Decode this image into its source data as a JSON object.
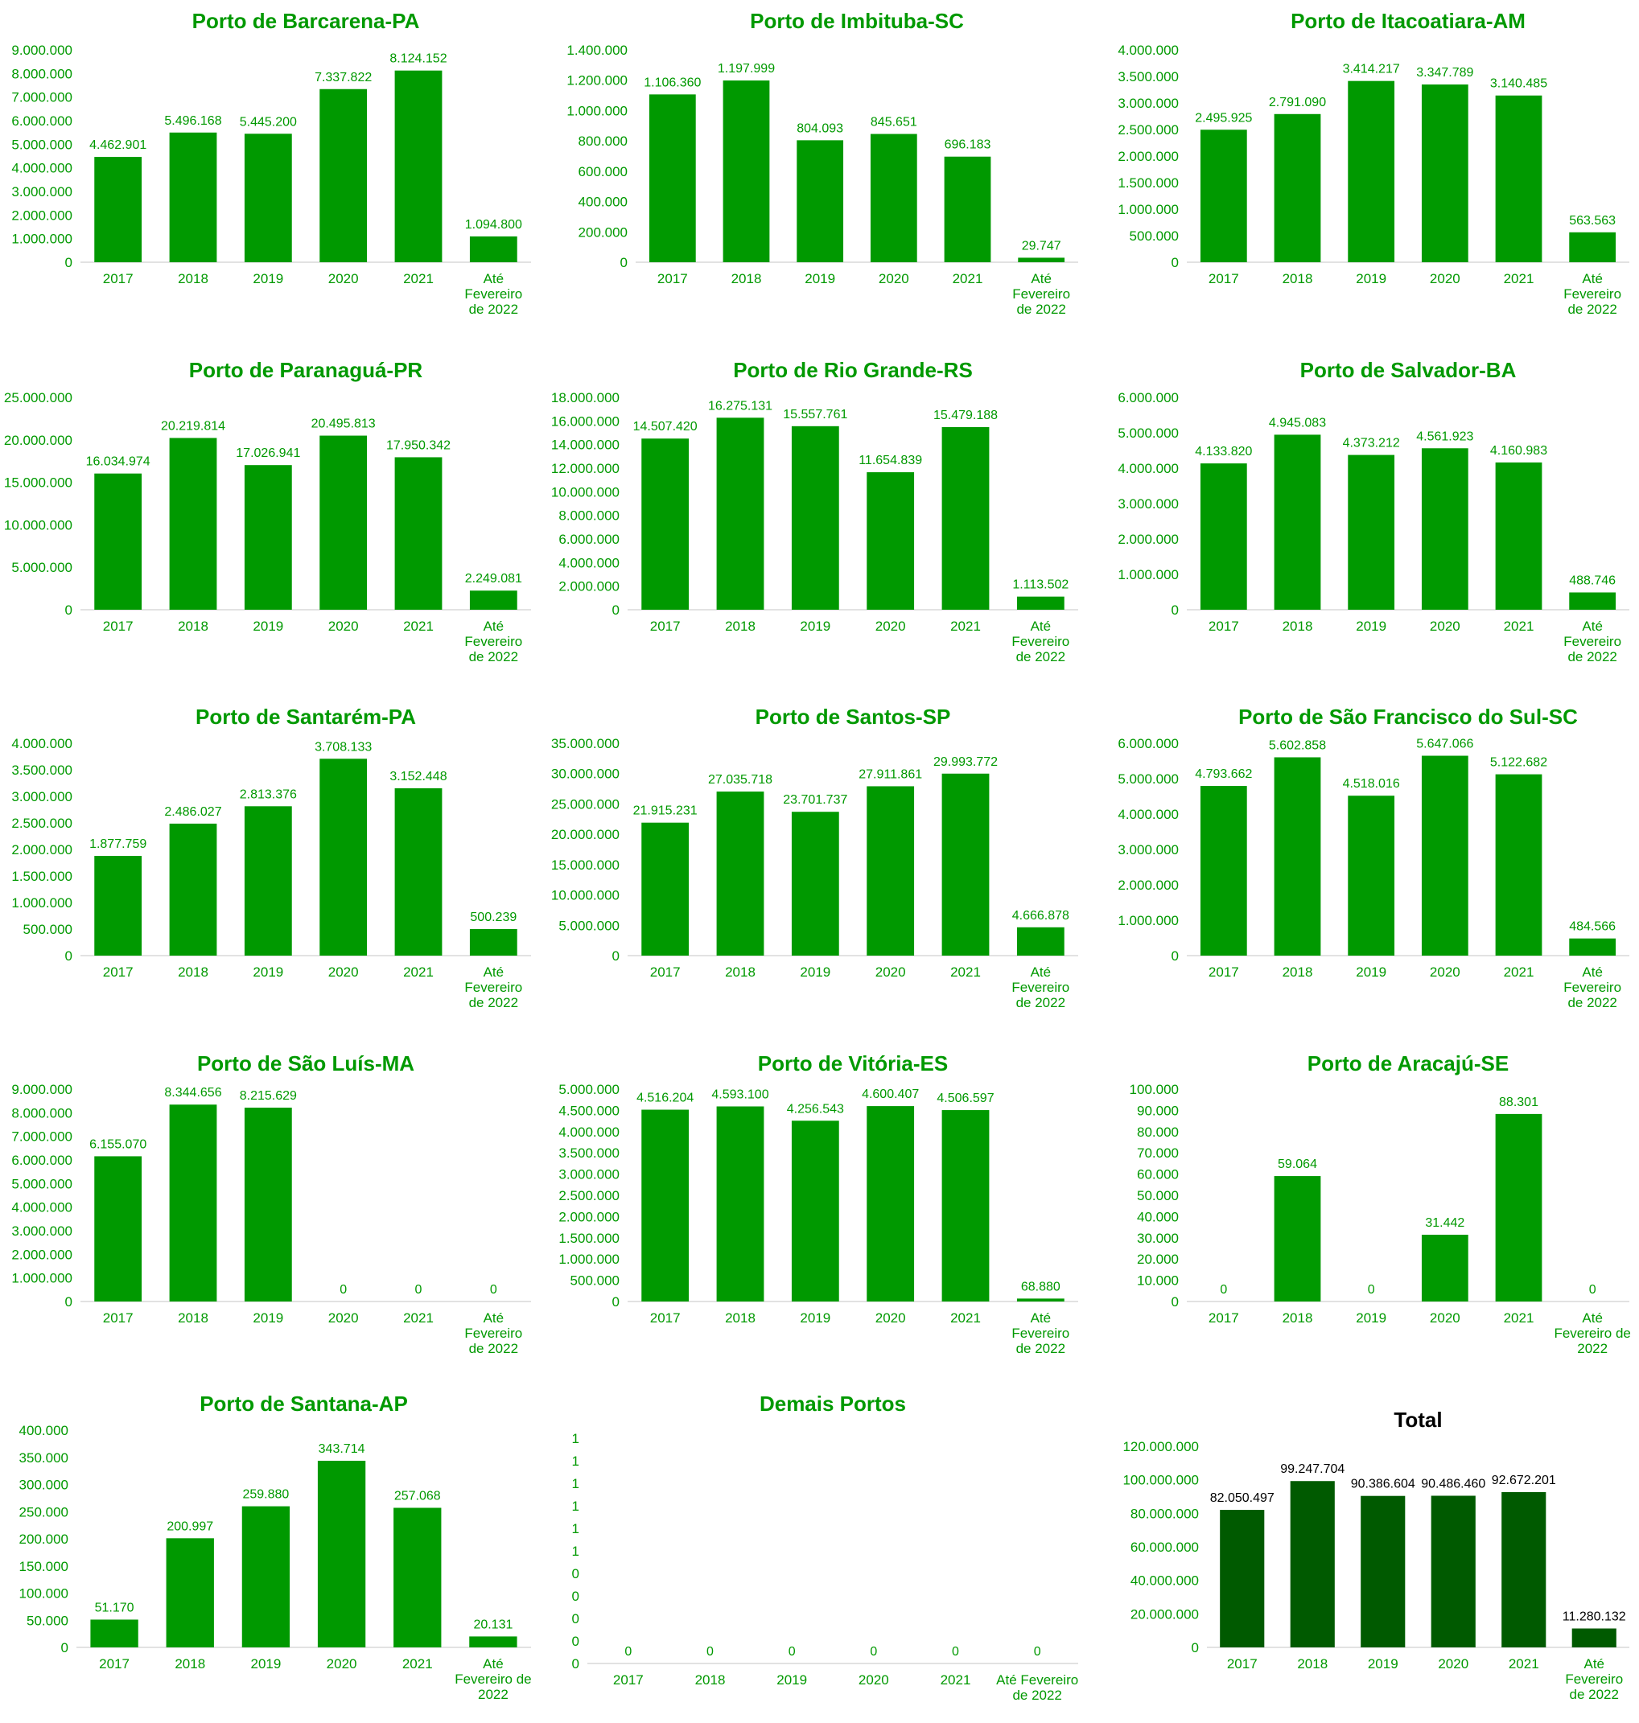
{
  "chart_data": [
    {
      "type": "bar",
      "title": "Porto de Barcarena-PA",
      "categories": [
        "2017",
        "2018",
        "2019",
        "2020",
        "2021",
        "Até|Fevereiro|de 2022"
      ],
      "values": [
        4462901,
        5496168,
        5445200,
        7337822,
        8124152,
        1094800
      ],
      "value_labels": [
        "4.462.901",
        "5.496.168",
        "5.445.200",
        "7.337.822",
        "8.124.152",
        "1.094.800"
      ],
      "ylim": [
        0,
        9000000
      ],
      "yticks": [
        "0",
        "1.000.000",
        "2.000.000",
        "3.000.000",
        "4.000.000",
        "5.000.000",
        "6.000.000",
        "7.000.000",
        "8.000.000",
        "9.000.000"
      ],
      "color": "#009900"
    },
    {
      "type": "bar",
      "title": "Porto de Imbituba-SC",
      "categories": [
        "2017",
        "2018",
        "2019",
        "2020",
        "2021",
        "Até|Fevereiro|de 2022"
      ],
      "values": [
        1106360,
        1197999,
        804093,
        845651,
        696183,
        29747
      ],
      "value_labels": [
        "1.106.360",
        "1.197.999",
        "804.093",
        "845.651",
        "696.183",
        "29.747"
      ],
      "ylim": [
        0,
        1400000
      ],
      "yticks": [
        "0",
        "200.000",
        "400.000",
        "600.000",
        "800.000",
        "1.000.000",
        "1.200.000",
        "1.400.000"
      ],
      "color": "#009900"
    },
    {
      "type": "bar",
      "title": "Porto de Itacoatiara-AM",
      "categories": [
        "2017",
        "2018",
        "2019",
        "2020",
        "2021",
        "Até|Fevereiro|de 2022"
      ],
      "values": [
        2495925,
        2791090,
        3414217,
        3347789,
        3140485,
        563563
      ],
      "value_labels": [
        "2.495.925",
        "2.791.090",
        "3.414.217",
        "3.347.789",
        "3.140.485",
        "563.563"
      ],
      "ylim": [
        0,
        4000000
      ],
      "yticks": [
        "0",
        "500.000",
        "1.000.000",
        "1.500.000",
        "2.000.000",
        "2.500.000",
        "3.000.000",
        "3.500.000",
        "4.000.000"
      ],
      "color": "#009900"
    },
    {
      "type": "bar",
      "title": "Porto de Paranaguá-PR",
      "categories": [
        "2017",
        "2018",
        "2019",
        "2020",
        "2021",
        "Até|Fevereiro|de 2022"
      ],
      "values": [
        16034974,
        20219814,
        17026941,
        20495813,
        17950342,
        2249081
      ],
      "value_labels": [
        "16.034.974",
        "20.219.814",
        "17.026.941",
        "20.495.813",
        "17.950.342",
        "2.249.081"
      ],
      "ylim": [
        0,
        25000000
      ],
      "yticks": [
        "0",
        "5.000.000",
        "10.000.000",
        "15.000.000",
        "20.000.000",
        "25.000.000"
      ],
      "color": "#009900"
    },
    {
      "type": "bar",
      "title": "Porto de Rio Grande-RS",
      "categories": [
        "2017",
        "2018",
        "2019",
        "2020",
        "2021",
        "Até|Fevereiro|de 2022"
      ],
      "values": [
        14507420,
        16275131,
        15557761,
        11654839,
        15479188,
        1113502
      ],
      "value_labels": [
        "14.507.420",
        "16.275.131",
        "15.557.761",
        "11.654.839",
        "15.479.188",
        "1.113.502"
      ],
      "ylim": [
        0,
        18000000
      ],
      "yticks": [
        "0",
        "2.000.000",
        "4.000.000",
        "6.000.000",
        "8.000.000",
        "10.000.000",
        "12.000.000",
        "14.000.000",
        "16.000.000",
        "18.000.000"
      ],
      "color": "#009900"
    },
    {
      "type": "bar",
      "title": "Porto de Salvador-BA",
      "categories": [
        "2017",
        "2018",
        "2019",
        "2020",
        "2021",
        "Até|Fevereiro|de 2022"
      ],
      "values": [
        4133820,
        4945083,
        4373212,
        4561923,
        4160983,
        488746
      ],
      "value_labels": [
        "4.133.820",
        "4.945.083",
        "4.373.212",
        "4.561.923",
        "4.160.983",
        "488.746"
      ],
      "ylim": [
        0,
        6000000
      ],
      "yticks": [
        "0",
        "1.000.000",
        "2.000.000",
        "3.000.000",
        "4.000.000",
        "5.000.000",
        "6.000.000"
      ],
      "color": "#009900"
    },
    {
      "type": "bar",
      "title": "Porto de Santarém-PA",
      "categories": [
        "2017",
        "2018",
        "2019",
        "2020",
        "2021",
        "Até|Fevereiro|de 2022"
      ],
      "values": [
        1877759,
        2486027,
        2813376,
        3708133,
        3152448,
        500239
      ],
      "value_labels": [
        "1.877.759",
        "2.486.027",
        "2.813.376",
        "3.708.133",
        "3.152.448",
        "500.239"
      ],
      "ylim": [
        0,
        4000000
      ],
      "yticks": [
        "0",
        "500.000",
        "1.000.000",
        "1.500.000",
        "2.000.000",
        "2.500.000",
        "3.000.000",
        "3.500.000",
        "4.000.000"
      ],
      "color": "#009900"
    },
    {
      "type": "bar",
      "title": "Porto de Santos-SP",
      "categories": [
        "2017",
        "2018",
        "2019",
        "2020",
        "2021",
        "Até|Fevereiro|de 2022"
      ],
      "values": [
        21915231,
        27035718,
        23701737,
        27911861,
        29993772,
        4666878
      ],
      "value_labels": [
        "21.915.231",
        "27.035.718",
        "23.701.737",
        "27.911.861",
        "29.993.772",
        "4.666.878"
      ],
      "ylim": [
        0,
        35000000
      ],
      "yticks": [
        "0",
        "5.000.000",
        "10.000.000",
        "15.000.000",
        "20.000.000",
        "25.000.000",
        "30.000.000",
        "35.000.000"
      ],
      "color": "#009900"
    },
    {
      "type": "bar",
      "title": "Porto de São Francisco do Sul-SC",
      "categories": [
        "2017",
        "2018",
        "2019",
        "2020",
        "2021",
        "Até|Fevereiro|de 2022"
      ],
      "values": [
        4793662,
        5602858,
        4518016,
        5647066,
        5122682,
        484566
      ],
      "value_labels": [
        "4.793.662",
        "5.602.858",
        "4.518.016",
        "5.647.066",
        "5.122.682",
        "484.566"
      ],
      "ylim": [
        0,
        6000000
      ],
      "yticks": [
        "0",
        "1.000.000",
        "2.000.000",
        "3.000.000",
        "4.000.000",
        "5.000.000",
        "6.000.000"
      ],
      "color": "#009900"
    },
    {
      "type": "bar",
      "title": "Porto de São Luís-MA",
      "categories": [
        "2017",
        "2018",
        "2019",
        "2020",
        "2021",
        "Até|Fevereiro|de 2022"
      ],
      "values": [
        6155070,
        8344656,
        8215629,
        0,
        0,
        0
      ],
      "value_labels": [
        "6.155.070",
        "8.344.656",
        "8.215.629",
        "0",
        "0",
        "0"
      ],
      "ylim": [
        0,
        9000000
      ],
      "yticks": [
        "0",
        "1.000.000",
        "2.000.000",
        "3.000.000",
        "4.000.000",
        "5.000.000",
        "6.000.000",
        "7.000.000",
        "8.000.000",
        "9.000.000"
      ],
      "color": "#009900"
    },
    {
      "type": "bar",
      "title": "Porto de Vitória-ES",
      "categories": [
        "2017",
        "2018",
        "2019",
        "2020",
        "2021",
        "Até|Fevereiro|de 2022"
      ],
      "values": [
        4516204,
        4593100,
        4256543,
        4600407,
        4506597,
        68880
      ],
      "value_labels": [
        "4.516.204",
        "4.593.100",
        "4.256.543",
        "4.600.407",
        "4.506.597",
        "68.880"
      ],
      "ylim": [
        0,
        5000000
      ],
      "yticks": [
        "0",
        "500.000",
        "1.000.000",
        "1.500.000",
        "2.000.000",
        "2.500.000",
        "3.000.000",
        "3.500.000",
        "4.000.000",
        "4.500.000",
        "5.000.000"
      ],
      "color": "#009900"
    },
    {
      "type": "bar",
      "title": "Porto de Aracajú-SE",
      "categories": [
        "2017",
        "2018",
        "2019",
        "2020",
        "2021",
        "Até|Fevereiro de|2022"
      ],
      "values": [
        0,
        59064,
        0,
        31442,
        88301,
        0
      ],
      "value_labels": [
        "0",
        "59.064",
        "0",
        "31.442",
        "88.301",
        "0"
      ],
      "ylim": [
        0,
        100000
      ],
      "yticks": [
        "0",
        "10.000",
        "20.000",
        "30.000",
        "40.000",
        "50.000",
        "60.000",
        "70.000",
        "80.000",
        "90.000",
        "100.000"
      ],
      "color": "#009900"
    },
    {
      "type": "bar",
      "title": "Porto de Santana-AP",
      "categories": [
        "2017",
        "2018",
        "2019",
        "2020",
        "2021",
        "Até|Fevereiro de|2022"
      ],
      "values": [
        51170,
        200997,
        259880,
        343714,
        257068,
        20131
      ],
      "value_labels": [
        "51.170",
        "200.997",
        "259.880",
        "343.714",
        "257.068",
        "20.131"
      ],
      "ylim": [
        0,
        400000
      ],
      "yticks": [
        "0",
        "50.000",
        "100.000",
        "150.000",
        "200.000",
        "250.000",
        "300.000",
        "350.000",
        "400.000"
      ],
      "color": "#009900"
    },
    {
      "type": "bar",
      "title": "Demais Portos",
      "categories": [
        "2017",
        "2018",
        "2019",
        "2020",
        "2021",
        "Até Fevereiro|de 2022"
      ],
      "values": [
        0,
        0,
        0,
        0,
        0,
        0
      ],
      "value_labels": [
        "0",
        "0",
        "0",
        "0",
        "0",
        "0"
      ],
      "ylim": [
        0,
        1
      ],
      "yticks": [
        "0",
        "0",
        "0",
        "0",
        "0",
        "1",
        "1",
        "1",
        "1",
        "1",
        "1"
      ],
      "color": "#009900"
    },
    {
      "type": "bar",
      "title": "Total",
      "categories": [
        "2017",
        "2018",
        "2019",
        "2020",
        "2021",
        "Até|Fevereiro|de 2022"
      ],
      "values": [
        82050497,
        99247704,
        90386604,
        90486460,
        92672201,
        11280132
      ],
      "value_labels": [
        "82.050.497",
        "99.247.704",
        "90.386.604",
        "90.486.460",
        "92.672.201",
        "11.280.132"
      ],
      "ylim": [
        0,
        120000000
      ],
      "yticks": [
        "0",
        "20.000.000",
        "40.000.000",
        "60.000.000",
        "80.000.000",
        "100.000.000",
        "120.000.000"
      ],
      "color": "#005a00",
      "title_color": "#000000",
      "label_color": "#000000"
    }
  ]
}
